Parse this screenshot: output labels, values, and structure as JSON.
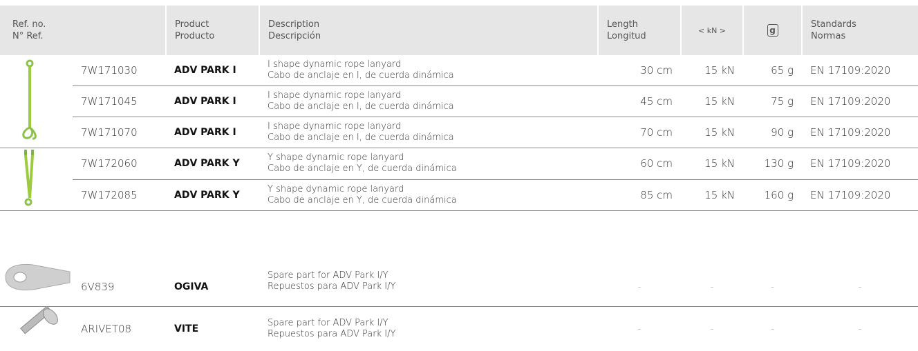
{
  "header": {
    "ref": {
      "en": "Ref. no.",
      "es": "N° Ref."
    },
    "product": {
      "en": "Product",
      "es": "Producto"
    },
    "description": {
      "en": "Description",
      "es": "Descripción"
    },
    "length": {
      "en": "Length",
      "es": "Longitud"
    },
    "strength": "< kN >",
    "weight": "g",
    "standards": {
      "en": "Standards",
      "es": "Normas"
    }
  },
  "rows": [
    {
      "ref": "7W171030",
      "product": "ADV PARK I",
      "description": {
        "en": "I shape dynamic rope lanyard",
        "es": "Cabo de anclaje en I, de cuerda dinámica"
      },
      "length": "30 cm",
      "strength": "15 kN",
      "weight": "65 g",
      "standard": "EN 17109:2020"
    },
    {
      "ref": "7W171045",
      "product": "ADV PARK I",
      "description": {
        "en": "I shape dynamic rope lanyard",
        "es": "Cabo de anclaje en I, de cuerda dinámica"
      },
      "length": "45 cm",
      "strength": "15 kN",
      "weight": "75 g",
      "standard": "EN 17109:2020"
    },
    {
      "ref": "7W171070",
      "product": "ADV PARK I",
      "description": {
        "en": "I shape dynamic rope lanyard",
        "es": "Cabo de anclaje en I, de cuerda dinámica"
      },
      "length": "70 cm",
      "strength": "15 kN",
      "weight": "90 g",
      "standard": "EN 17109:2020"
    },
    {
      "ref": "7W172060",
      "product": "ADV PARK Y",
      "description": {
        "en": "Y shape dynamic rope lanyard",
        "es": "Cabo de anclaje en Y, de cuerda dinámica"
      },
      "length": "60 cm",
      "strength": "15 kN",
      "weight": "130 g",
      "standard": "EN 17109:2020"
    },
    {
      "ref": "7W172085",
      "product": "ADV PARK Y",
      "description": {
        "en": "Y shape dynamic rope lanyard",
        "es": "Cabo de anclaje en Y, de cuerda dinámica"
      },
      "length": "85 cm",
      "strength": "15 kN",
      "weight": "160 g",
      "standard": "EN 17109:2020"
    },
    {
      "ref": "6V839",
      "product": "OGIVA",
      "description": {
        "en": "Spare part for ADV Park I/Y",
        "es": "Repuestos para ADV Park I/Y"
      },
      "length": "-",
      "strength": "-",
      "weight": "-",
      "standard": "-"
    },
    {
      "ref": "ARIVET08",
      "product": "VITE",
      "description": {
        "en": "Spare part for ADV Park I/Y",
        "es": "Repuestos para ADV Park I/Y"
      },
      "length": "-",
      "strength": "-",
      "weight": "-",
      "standard": "-"
    }
  ]
}
